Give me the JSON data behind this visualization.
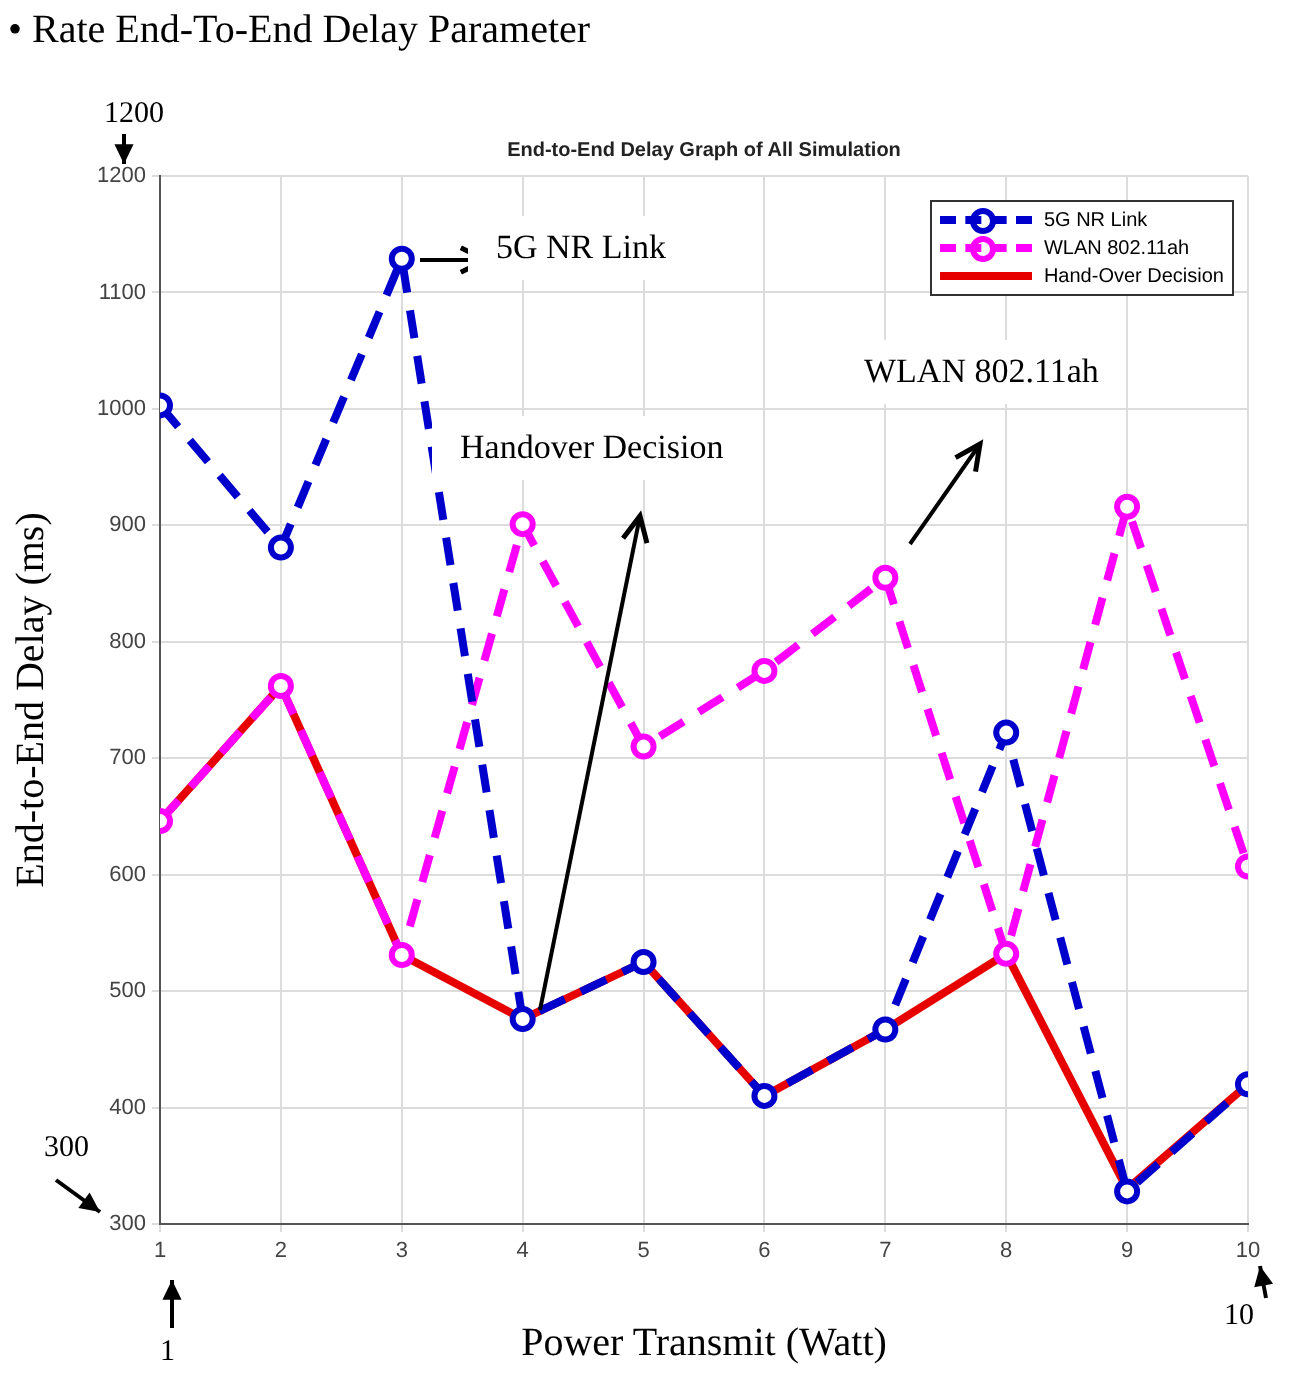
{
  "chart_data": {
    "type": "line",
    "title": "End-to-End Delay Graph of All Simulation",
    "xlabel": "Power Transmit (Watt)",
    "ylabel": "End-to-End Delay (ms)",
    "x": [
      1,
      2,
      3,
      4,
      5,
      6,
      7,
      8,
      9,
      10
    ],
    "series": [
      {
        "name": "5G NR Link",
        "color": "#0000cc",
        "marker": "circle",
        "line_style": "dashed",
        "values": [
          1003,
          881,
          1129,
          476,
          525,
          410,
          467,
          722,
          328,
          420
        ]
      },
      {
        "name": "WLAN 802.11ah",
        "color": "#ff00ff",
        "marker": "circle",
        "line_style": "dashed",
        "values": [
          646,
          762,
          531,
          901,
          710,
          775,
          855,
          532,
          916,
          607
        ]
      },
      {
        "name": "Hand-Over Decision",
        "color": "#e60000",
        "marker": "none",
        "line_style": "solid",
        "values": [
          646,
          762,
          531,
          476,
          525,
          410,
          467,
          532,
          330,
          420
        ]
      }
    ],
    "xlim": [
      1,
      10
    ],
    "xticks": [
      1,
      2,
      3,
      4,
      5,
      6,
      7,
      8,
      9,
      10
    ],
    "ylim": [
      300,
      1200
    ],
    "yticks": [
      300,
      400,
      500,
      600,
      700,
      800,
      900,
      1000,
      1100,
      1200
    ],
    "grid": true,
    "legend": "top right",
    "annotations": [
      "•  Rate End-To-End Delay Parameter",
      "1200",
      "5G NR Link",
      "WLAN 802.11ah",
      "Handover Decision",
      "300",
      "1",
      "10"
    ]
  }
}
